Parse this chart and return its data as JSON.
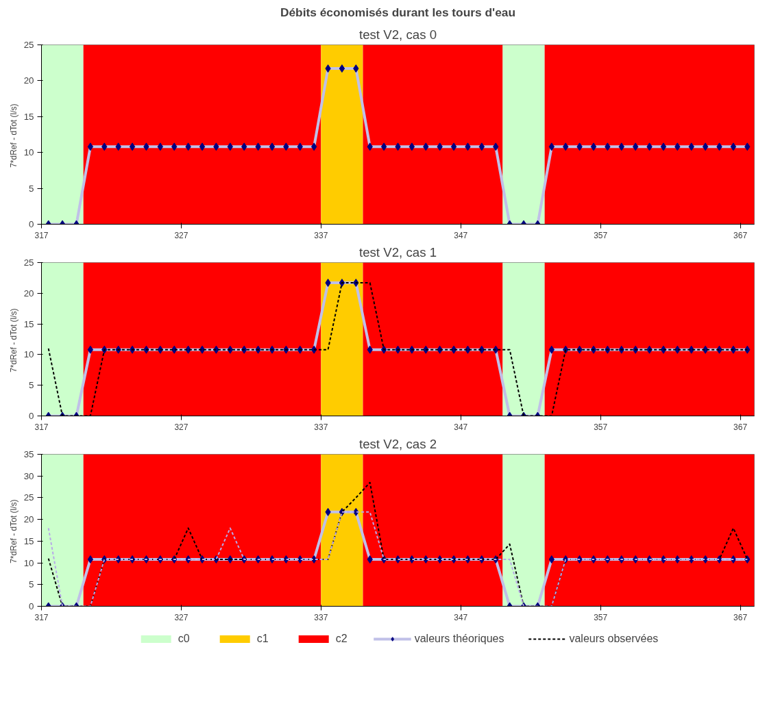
{
  "chart_data": [
    {
      "type": "line",
      "title": "Débits économisés durant les tours d'eau",
      "subtitle": "test V2, cas 0",
      "ylabel": "7*dRef - dTot  (l/s)",
      "x": [
        317.5,
        318.5,
        319.5,
        320.5,
        321.5,
        322.5,
        323.5,
        324.5,
        325.5,
        326.5,
        327.5,
        328.5,
        329.5,
        330.5,
        331.5,
        332.5,
        333.5,
        334.5,
        335.5,
        336.5,
        337.5,
        338.5,
        339.5,
        340.5,
        341.5,
        342.5,
        343.5,
        344.5,
        345.5,
        346.5,
        347.5,
        348.5,
        349.5,
        350.5,
        351.5,
        352.5,
        353.5,
        354.5,
        355.5,
        356.5,
        357.5,
        358.5,
        359.5,
        360.5,
        361.5,
        362.5,
        363.5,
        364.5,
        365.5,
        366.5,
        367.5
      ],
      "xlim": [
        317,
        368
      ],
      "xticks": [
        317,
        327,
        337,
        347,
        357,
        367
      ],
      "ylim": [
        0,
        25
      ],
      "yticks": [
        0,
        5,
        10,
        15,
        20,
        25
      ],
      "bands": [
        {
          "axis": "x",
          "from": 317,
          "to": 320,
          "color": "#ccffcc"
        },
        {
          "axis": "x",
          "from": 320,
          "to": 337,
          "color": "#ff0000"
        },
        {
          "axis": "x",
          "from": 337,
          "to": 340,
          "color": "#ffcc00"
        },
        {
          "axis": "x",
          "from": 340,
          "to": 350,
          "color": "#ff0000"
        },
        {
          "axis": "x",
          "from": 350,
          "to": 353,
          "color": "#ccffcc"
        },
        {
          "axis": "x",
          "from": 353,
          "to": 368,
          "color": "#ff0000"
        }
      ],
      "series": [
        {
          "color": "#c0c0e8",
          "marker": "diamond",
          "line_style": "solid",
          "values": [
            0,
            0,
            0,
            10.8,
            10.8,
            10.8,
            10.8,
            10.8,
            10.8,
            10.8,
            10.8,
            10.8,
            10.8,
            10.8,
            10.8,
            10.8,
            10.8,
            10.8,
            10.8,
            10.8,
            21.7,
            21.7,
            21.7,
            10.8,
            10.8,
            10.8,
            10.8,
            10.8,
            10.8,
            10.8,
            10.8,
            10.8,
            10.8,
            0,
            0,
            0,
            10.8,
            10.8,
            10.8,
            10.8,
            10.8,
            10.8,
            10.8,
            10.8,
            10.8,
            10.8,
            10.8,
            10.8,
            10.8,
            10.8,
            10.8
          ]
        }
      ]
    },
    {
      "type": "line",
      "title": "test V2, cas 1",
      "ylabel": "7*dRef - dTot  (l/s)",
      "x": [
        317.5,
        318.5,
        319.5,
        320.5,
        321.5,
        322.5,
        323.5,
        324.5,
        325.5,
        326.5,
        327.5,
        328.5,
        329.5,
        330.5,
        331.5,
        332.5,
        333.5,
        334.5,
        335.5,
        336.5,
        337.5,
        338.5,
        339.5,
        340.5,
        341.5,
        342.5,
        343.5,
        344.5,
        345.5,
        346.5,
        347.5,
        348.5,
        349.5,
        350.5,
        351.5,
        352.5,
        353.5,
        354.5,
        355.5,
        356.5,
        357.5,
        358.5,
        359.5,
        360.5,
        361.5,
        362.5,
        363.5,
        364.5,
        365.5,
        366.5,
        367.5
      ],
      "xlim": [
        317,
        368
      ],
      "xticks": [
        317,
        327,
        337,
        347,
        357,
        367
      ],
      "ylim": [
        0,
        25
      ],
      "yticks": [
        0,
        5,
        10,
        15,
        20,
        25
      ],
      "bands": [
        {
          "axis": "x",
          "from": 317,
          "to": 320,
          "color": "#ccffcc"
        },
        {
          "axis": "x",
          "from": 320,
          "to": 337,
          "color": "#ff0000"
        },
        {
          "axis": "x",
          "from": 337,
          "to": 340,
          "color": "#ffcc00"
        },
        {
          "axis": "x",
          "from": 340,
          "to": 350,
          "color": "#ff0000"
        },
        {
          "axis": "x",
          "from": 350,
          "to": 353,
          "color": "#ccffcc"
        },
        {
          "axis": "x",
          "from": 353,
          "to": 368,
          "color": "#ff0000"
        }
      ],
      "series": [
        {
          "color": "#c0c0e8",
          "marker": "diamond",
          "line_style": "solid",
          "values": [
            0,
            0,
            0,
            10.8,
            10.8,
            10.8,
            10.8,
            10.8,
            10.8,
            10.8,
            10.8,
            10.8,
            10.8,
            10.8,
            10.8,
            10.8,
            10.8,
            10.8,
            10.8,
            10.8,
            21.7,
            21.7,
            21.7,
            10.8,
            10.8,
            10.8,
            10.8,
            10.8,
            10.8,
            10.8,
            10.8,
            10.8,
            10.8,
            0,
            0,
            0,
            10.8,
            10.8,
            10.8,
            10.8,
            10.8,
            10.8,
            10.8,
            10.8,
            10.8,
            10.8,
            10.8,
            10.8,
            10.8,
            10.8,
            10.8
          ]
        },
        {
          "color": "#000000",
          "line_style": "dashed",
          "values": [
            11,
            0,
            0,
            0,
            10.8,
            10.8,
            10.8,
            10.8,
            10.8,
            10.8,
            10.8,
            10.8,
            10.8,
            10.8,
            10.8,
            10.8,
            10.8,
            10.8,
            10.8,
            10.8,
            10.8,
            21.7,
            21.7,
            21.7,
            10.8,
            10.8,
            10.8,
            10.8,
            10.8,
            10.8,
            10.8,
            10.8,
            10.8,
            10.8,
            0,
            0,
            0,
            10.8,
            10.8,
            10.8,
            10.8,
            10.8,
            10.8,
            10.8,
            10.8,
            10.8,
            10.8,
            10.8,
            10.8,
            10.8,
            10.8
          ]
        }
      ]
    },
    {
      "type": "line",
      "title": "test V2, cas 2",
      "ylabel": "7*dRef - dTot  (l/s)",
      "x": [
        317.5,
        318.5,
        319.5,
        320.5,
        321.5,
        322.5,
        323.5,
        324.5,
        325.5,
        326.5,
        327.5,
        328.5,
        329.5,
        330.5,
        331.5,
        332.5,
        333.5,
        334.5,
        335.5,
        336.5,
        337.5,
        338.5,
        339.5,
        340.5,
        341.5,
        342.5,
        343.5,
        344.5,
        345.5,
        346.5,
        347.5,
        348.5,
        349.5,
        350.5,
        351.5,
        352.5,
        353.5,
        354.5,
        355.5,
        356.5,
        357.5,
        358.5,
        359.5,
        360.5,
        361.5,
        362.5,
        363.5,
        364.5,
        365.5,
        366.5,
        367.5
      ],
      "xlim": [
        317,
        368
      ],
      "xticks": [
        317,
        327,
        337,
        347,
        357,
        367
      ],
      "ylim": [
        0,
        35
      ],
      "yticks": [
        0,
        5,
        10,
        15,
        20,
        25,
        30,
        35
      ],
      "legend": "bottom",
      "bands": [
        {
          "axis": "x",
          "from": 317,
          "to": 320,
          "label": "c0",
          "color": "#ccffcc"
        },
        {
          "axis": "x",
          "from": 320,
          "to": 337,
          "label": "c2",
          "color": "#ff0000"
        },
        {
          "axis": "x",
          "from": 337,
          "to": 340,
          "label": "c1",
          "color": "#ffcc00"
        },
        {
          "axis": "x",
          "from": 340,
          "to": 350,
          "color": "#ff0000"
        },
        {
          "axis": "x",
          "from": 350,
          "to": 353,
          "color": "#ccffcc"
        },
        {
          "axis": "x",
          "from": 353,
          "to": 368,
          "color": "#ff0000"
        }
      ],
      "series": [
        {
          "name": "valeurs théoriques",
          "color": "#c0c0e8",
          "marker": "diamond",
          "line_style": "solid",
          "values": [
            0,
            0,
            0,
            10.8,
            10.8,
            10.8,
            10.8,
            10.8,
            10.8,
            10.8,
            10.8,
            10.8,
            10.8,
            10.8,
            10.8,
            10.8,
            10.8,
            10.8,
            10.8,
            10.8,
            21.7,
            21.7,
            21.7,
            10.8,
            10.8,
            10.8,
            10.8,
            10.8,
            10.8,
            10.8,
            10.8,
            10.8,
            10.8,
            0,
            0,
            0,
            10.8,
            10.8,
            10.8,
            10.8,
            10.8,
            10.8,
            10.8,
            10.8,
            10.8,
            10.8,
            10.8,
            10.8,
            10.8,
            10.8,
            10.8
          ]
        },
        {
          "name": "valeurs observées",
          "color": "#000000",
          "line_style": "dashed",
          "values": [
            11,
            0,
            0,
            0,
            10.8,
            10.8,
            10.8,
            10.8,
            10.8,
            10.8,
            18,
            10.8,
            10.8,
            10.8,
            10.8,
            10.8,
            10.8,
            10.8,
            10.8,
            10.8,
            10.8,
            21.7,
            25,
            28.5,
            10.8,
            10.8,
            10.8,
            10.8,
            10.8,
            10.8,
            10.8,
            10.8,
            10.8,
            14.3,
            0,
            0,
            0,
            10.8,
            10.8,
            10.8,
            10.8,
            10.8,
            10.8,
            10.8,
            10.8,
            10.8,
            10.8,
            10.8,
            10.8,
            18,
            10.8
          ]
        },
        {
          "color": "#b8a8e8",
          "line_style": "dashed",
          "values": [
            18,
            0,
            0,
            0,
            10.8,
            10.8,
            10.8,
            10.8,
            10.8,
            10.8,
            10.8,
            10.8,
            10.8,
            18,
            10.8,
            10.8,
            10.8,
            10.8,
            10.8,
            10.8,
            10.8,
            21.7,
            21.7,
            21.7,
            10.8,
            10.8,
            10.8,
            10.8,
            10.8,
            10.8,
            10.8,
            10.8,
            10.8,
            10.8,
            0,
            0,
            0,
            10.8,
            10.8,
            10.8,
            10.8,
            10.8,
            10.8,
            10.8,
            10.8,
            10.8,
            10.8,
            10.8,
            10.8,
            10.8,
            10.8
          ]
        }
      ]
    }
  ]
}
